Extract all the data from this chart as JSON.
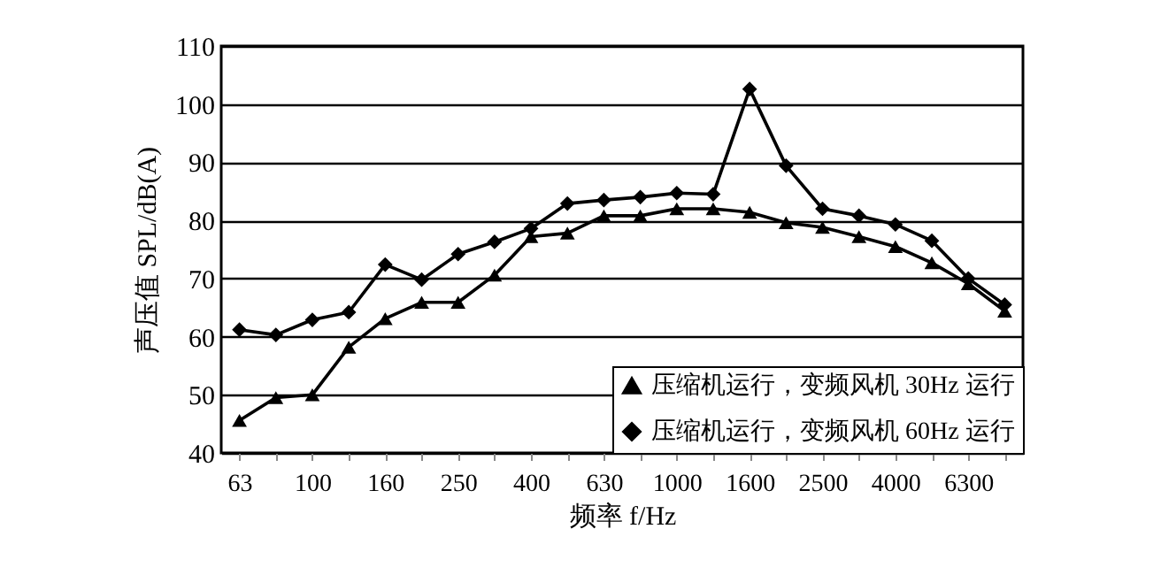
{
  "chart_data": {
    "type": "line",
    "xlabel": "频率 f/Hz",
    "ylabel": "声压值 SPL/dB(A)",
    "categories": [
      "63",
      null,
      "100",
      null,
      "160",
      null,
      "250",
      null,
      "400",
      null,
      "630",
      null,
      "1000",
      null,
      "1600",
      null,
      "2500",
      null,
      "4000",
      null,
      "6300",
      null
    ],
    "series": [
      {
        "name": "压缩机运行，变频风机 30Hz 运行",
        "color": "#000000",
        "marker": "triangle",
        "values": [
          45.6,
          49.5,
          50,
          58.2,
          63.1,
          65.9,
          65.9,
          70.6,
          77.2,
          77.8,
          80.8,
          80.8,
          82,
          82,
          81.4,
          79.6,
          78.8,
          77.2,
          75.5,
          72.7,
          69.1,
          64.4
        ]
      },
      {
        "name": "压缩机运行，变频风机 60Hz 运行",
        "color": "#000000",
        "marker": "diamond",
        "values": [
          61.2,
          60.3,
          62.9,
          64.2,
          72.4,
          69.8,
          74.2,
          76.3,
          78.6,
          82.9,
          83.5,
          84,
          84.7,
          84.5,
          102.6,
          89.4,
          82,
          80.8,
          79.3,
          76.5,
          70,
          65.5
        ]
      }
    ],
    "ylim": [
      40,
      110
    ],
    "yticks": [
      40,
      50,
      60,
      70,
      80,
      90,
      100,
      110
    ],
    "grid": "y",
    "legend": "bottom right",
    "line_style": "solid"
  }
}
